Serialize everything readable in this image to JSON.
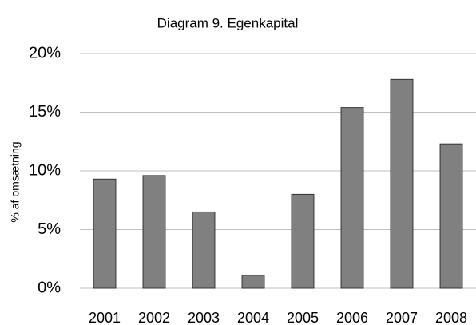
{
  "chart_data": {
    "type": "bar",
    "title": "Diagram 9. Egenkapital",
    "y_label": "% af omsætning",
    "categories": [
      "2001",
      "2002",
      "2003",
      "2004",
      "2005",
      "2006",
      "2007",
      "2008"
    ],
    "values": [
      9.3,
      9.6,
      6.5,
      1.1,
      8.0,
      15.4,
      17.8,
      12.3
    ],
    "color": "#808080",
    "ylim": [
      0,
      20
    ],
    "yticks": [
      {
        "value": 0,
        "label": "0%"
      },
      {
        "value": 5,
        "label": "5%"
      },
      {
        "value": 10,
        "label": "10%"
      },
      {
        "value": 15,
        "label": "15%"
      },
      {
        "value": 20,
        "label": "20%"
      }
    ],
    "grid": true
  }
}
